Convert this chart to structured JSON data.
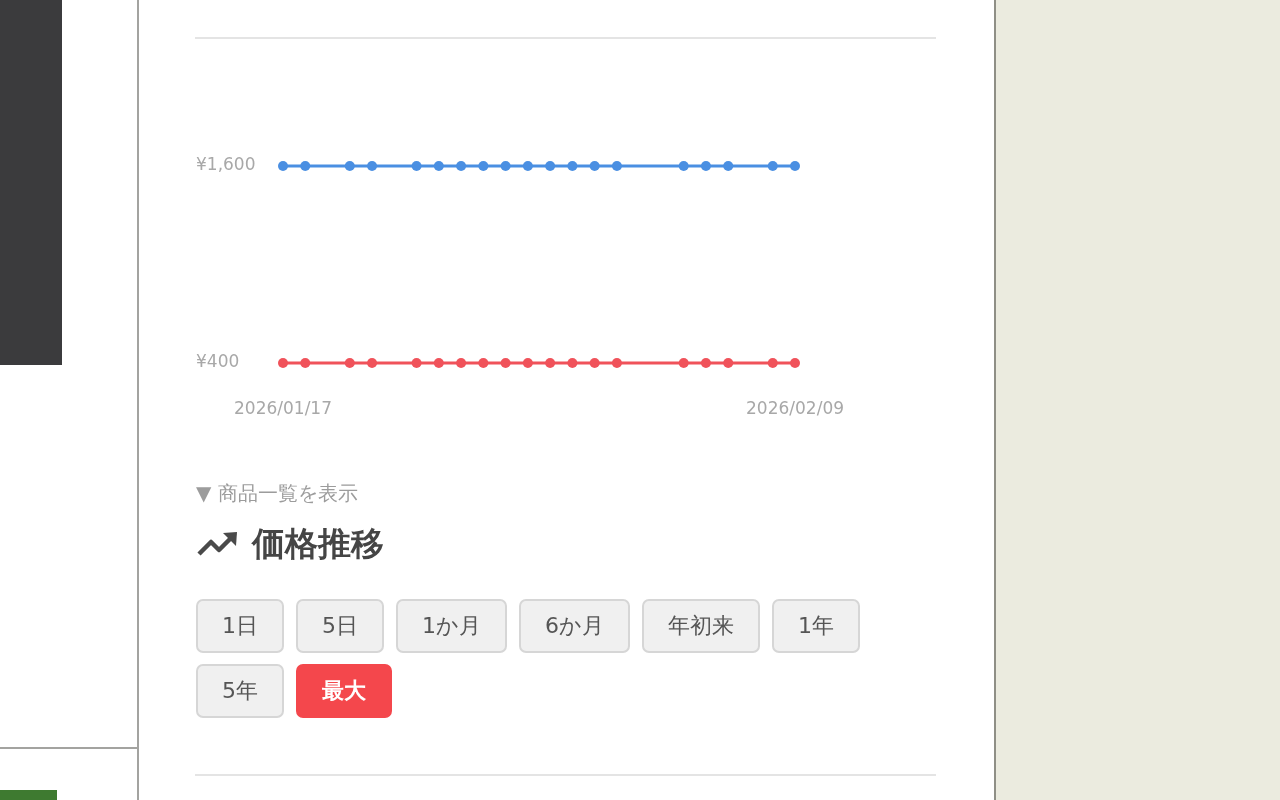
{
  "chart_data": {
    "type": "line",
    "title": "価格推移",
    "annotations": [
      "▼ 商品一覧を表示",
      "1日",
      "5日",
      "1か月",
      "6か月",
      "年初来",
      "1年",
      "5年",
      "最大"
    ],
    "x": [
      "2026-01-17",
      "2026-01-18",
      "2026-01-20",
      "2026-01-21",
      "2026-01-23",
      "2026-01-24",
      "2026-01-25",
      "2026-01-26",
      "2026-01-27",
      "2026-01-28",
      "2026-01-29",
      "2026-01-30",
      "2026-01-31",
      "2026-02-01",
      "2026-02-04",
      "2026-02-05",
      "2026-02-06",
      "2026-02-08",
      "2026-02-09"
    ],
    "series": [
      {
        "color": "#4a8fe2",
        "values": [
          1600,
          1600,
          1600,
          1600,
          1600,
          1600,
          1600,
          1600,
          1600,
          1600,
          1600,
          1600,
          1600,
          1600,
          1600,
          1600,
          1600,
          1600,
          1600
        ]
      },
      {
        "color": "#f0525a",
        "values": [
          400,
          400,
          400,
          400,
          400,
          400,
          400,
          400,
          400,
          400,
          400,
          400,
          400,
          400,
          400,
          400,
          400,
          400,
          400
        ]
      }
    ],
    "xlim": [
      "2026-01-17",
      "2026-02-09"
    ],
    "xticks": [
      {
        "value": "2026-01-17",
        "label": "2026/01/17"
      },
      {
        "value": "2026-02-09",
        "label": "2026/02/09"
      }
    ],
    "ylim": [
      400,
      1600
    ],
    "yticks": [
      {
        "value": 400,
        "label": "¥400"
      },
      {
        "value": 1600,
        "label": "¥1,600"
      }
    ],
    "marker": "circle"
  }
}
